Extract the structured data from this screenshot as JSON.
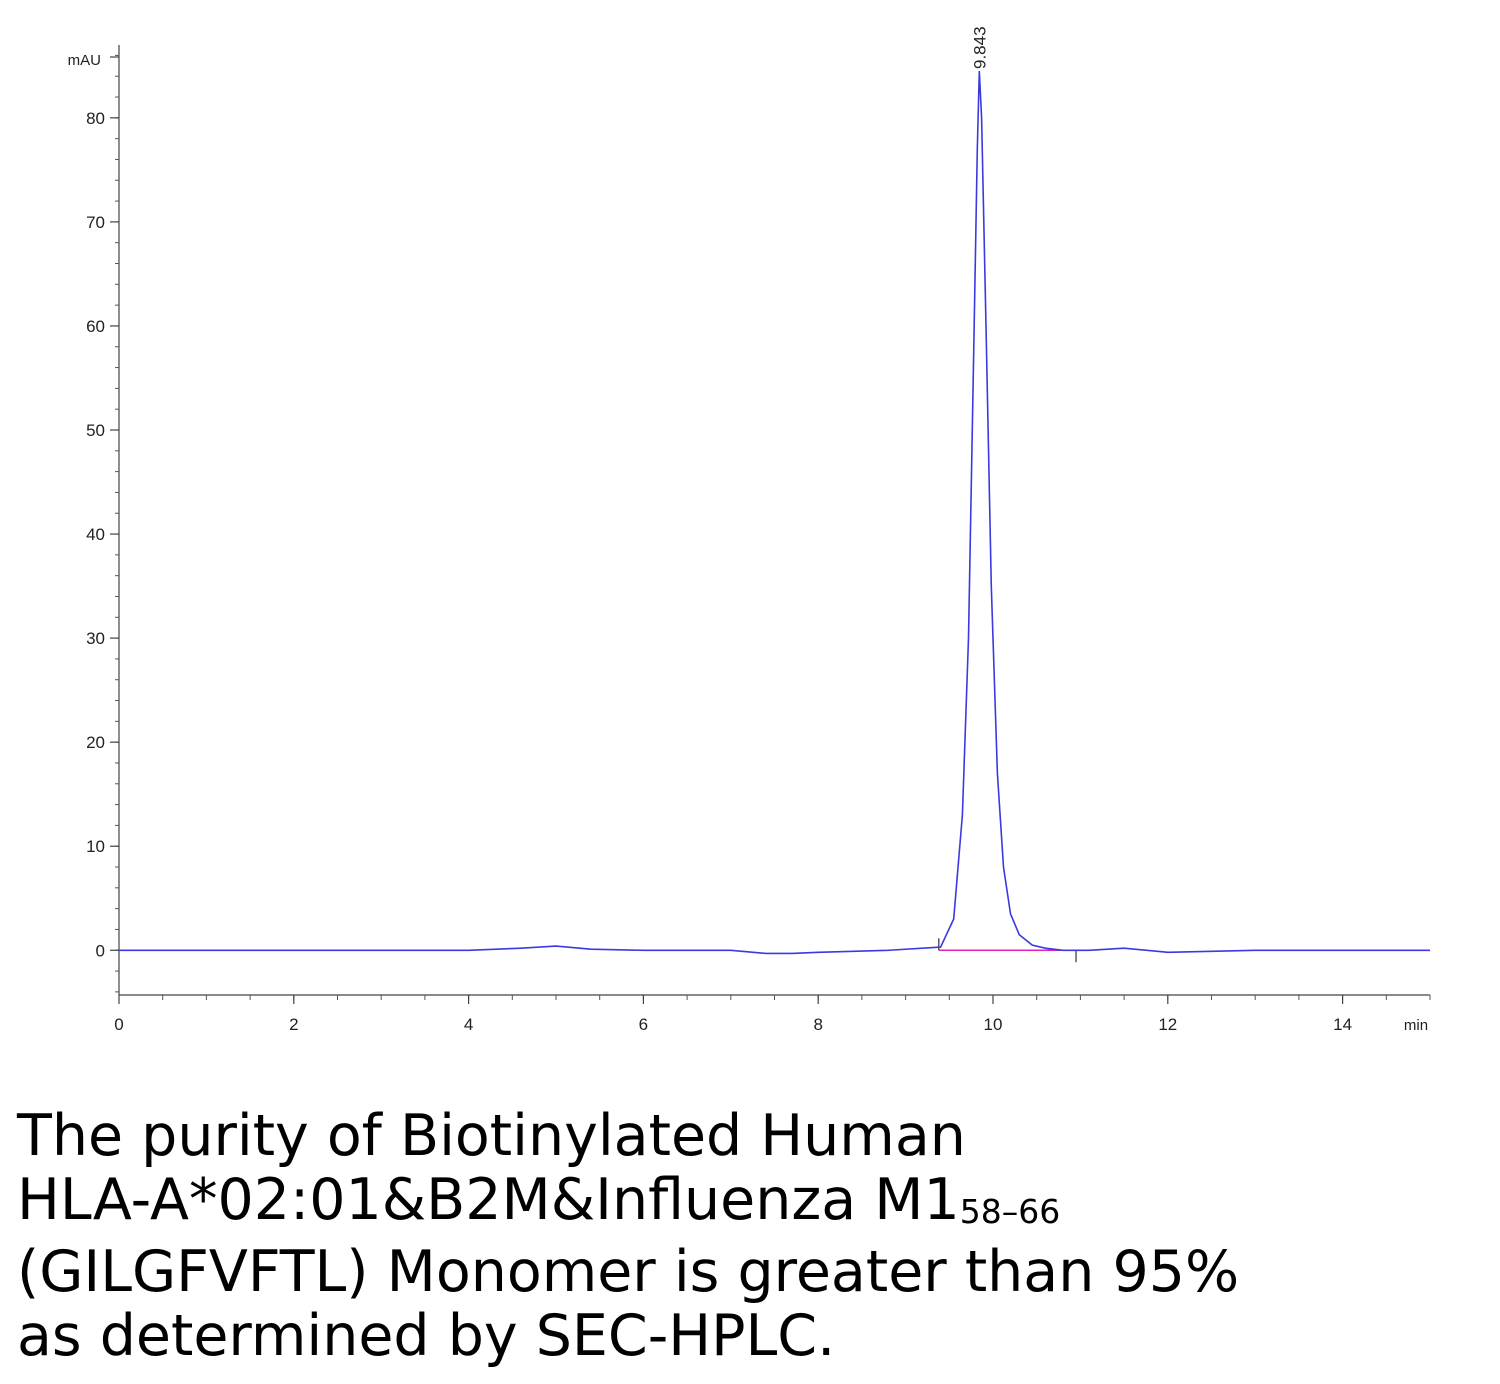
{
  "chart_data": {
    "type": "line",
    "title": "",
    "ylabel": "mAU",
    "xlabel": "min",
    "ylim": [
      -4.3,
      87
    ],
    "xlim": [
      0,
      15
    ],
    "xticks": [
      0,
      2,
      4,
      6,
      8,
      10,
      12,
      14
    ],
    "yticks": [
      0,
      10,
      20,
      30,
      40,
      50,
      60,
      70,
      80
    ],
    "grid": false,
    "series": [
      {
        "color": "#3a3ae0",
        "peak": {
          "x": 9.843,
          "y": 84.5
        },
        "x": [
          0,
          2,
          4,
          4.6,
          5.0,
          5.4,
          6,
          7,
          7.4,
          7.7,
          8,
          8.8,
          9.4,
          9.55,
          9.65,
          9.72,
          9.78,
          9.82,
          9.843,
          9.87,
          9.92,
          9.98,
          10.05,
          10.12,
          10.2,
          10.3,
          10.45,
          10.6,
          10.8,
          11.1,
          11.5,
          12,
          13,
          14,
          15
        ],
        "y": [
          0,
          0,
          0,
          0.2,
          0.4,
          0.1,
          0,
          0,
          -0.3,
          -0.3,
          -0.2,
          0,
          0.3,
          3.0,
          13,
          30,
          58,
          77,
          84.5,
          80,
          60,
          35,
          17,
          8,
          3.5,
          1.5,
          0.5,
          0.2,
          0,
          0,
          0.2,
          -0.2,
          0,
          0,
          0
        ]
      }
    ],
    "baseline": {
      "color": "#e020c0",
      "x": [
        9.38,
        10.95
      ],
      "y": [
        0,
        0
      ]
    },
    "annotations": [
      {
        "text": "9.843",
        "x": 9.843
      }
    ]
  },
  "caption": {
    "line1": "The purity of Biotinylated Human",
    "line2_main": "HLA-A*02:01&B2M&Influenza M1",
    "line2_sub": "58–66",
    "line3": "(GILGFVFTL) Monomer is greater than 95%",
    "line4": "as determined by SEC-HPLC."
  }
}
